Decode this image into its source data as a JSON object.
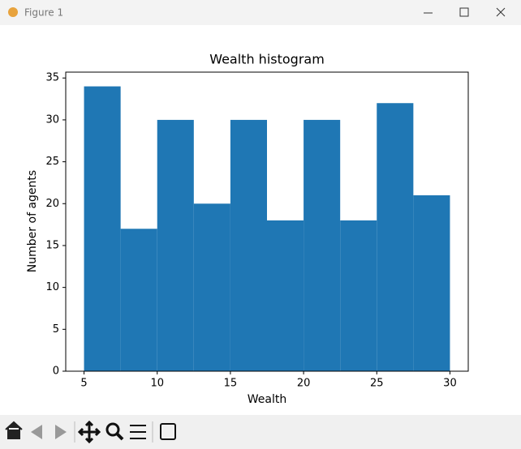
{
  "window": {
    "title": "Figure 1"
  },
  "chart_data": {
    "type": "histogram",
    "title": "Wealth histogram",
    "xlabel": "Wealth",
    "ylabel": "Number of agents",
    "bins": [
      5,
      7.5,
      10,
      12.5,
      15,
      17.5,
      20,
      22.5,
      25,
      27.5,
      30
    ],
    "values": [
      34,
      17,
      30,
      20,
      30,
      18,
      30,
      18,
      32,
      21
    ],
    "color": "#1f77b4",
    "xlim": [
      3.75,
      31.25
    ],
    "xticks": [
      5,
      10,
      15,
      20,
      25,
      30
    ],
    "ylim": [
      0,
      35.7
    ],
    "yticks": [
      0,
      5,
      10,
      15,
      20,
      25,
      30,
      35
    ],
    "grid": false
  }
}
